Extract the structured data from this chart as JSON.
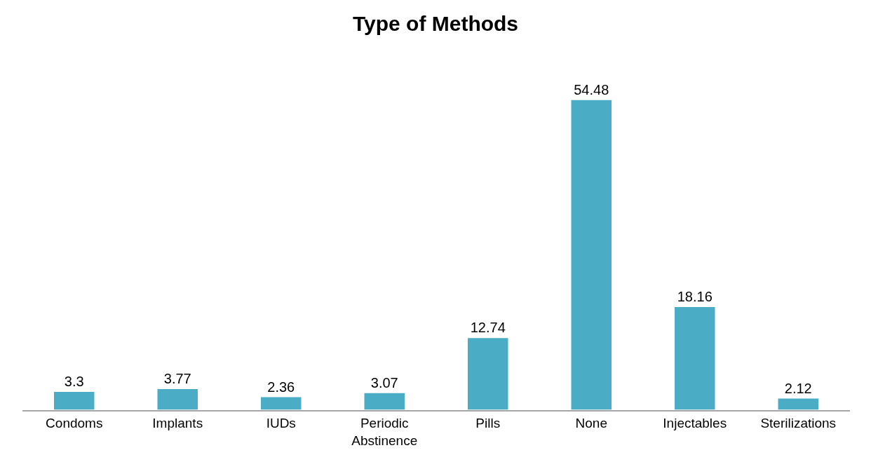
{
  "chart_data": {
    "type": "bar",
    "title": "Type of Methods",
    "categories": [
      "Condoms",
      "Implants",
      "IUDs",
      "Periodic Abstinence",
      "Pills",
      "None",
      "Injectables",
      "Sterilizations"
    ],
    "values": [
      3.3,
      3.77,
      2.36,
      3.07,
      12.74,
      54.48,
      18.16,
      2.12
    ],
    "color": "#4bacc6",
    "data_labels": true
  }
}
